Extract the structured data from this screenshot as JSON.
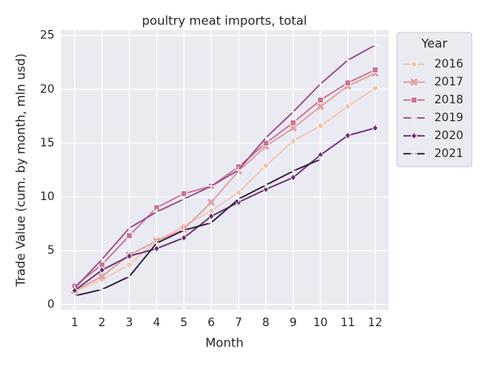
{
  "chart_data": {
    "type": "line",
    "title": "poultry meat imports, total",
    "x_label": "Month",
    "y_label": "Trade Value (cum. by month, mln usd)",
    "legend_title": "Year",
    "legend_position": "outside upper right",
    "grid": true,
    "x": [
      1,
      2,
      3,
      4,
      5,
      6,
      7,
      8,
      9,
      10,
      11,
      12
    ],
    "xlim": [
      0.5,
      12.5
    ],
    "xticks": [
      1,
      2,
      3,
      4,
      5,
      6,
      7,
      8,
      9,
      10,
      11,
      12
    ],
    "ylim": [
      -0.5,
      25.5
    ],
    "yticks": [
      0,
      5,
      10,
      15,
      20,
      25
    ],
    "series": [
      {
        "name": "2016",
        "color": "#efc8b5",
        "marker": "circle",
        "values": [
          1.2,
          2.3,
          3.7,
          5.9,
          7.3,
          8.7,
          10.4,
          12.9,
          15.2,
          16.6,
          18.4,
          20.1
        ]
      },
      {
        "name": "2017",
        "color": "#e2a0a0",
        "marker": "x",
        "values": [
          1.3,
          2.6,
          4.6,
          5.9,
          7.0,
          9.5,
          12.4,
          14.7,
          16.4,
          18.4,
          20.3,
          21.5
        ]
      },
      {
        "name": "2018",
        "color": "#c77595",
        "marker": "square",
        "values": [
          1.7,
          3.7,
          6.4,
          9.0,
          10.3,
          11.0,
          12.8,
          15.0,
          16.9,
          19.0,
          20.6,
          21.8
        ]
      },
      {
        "name": "2019",
        "color": "#9a4e88",
        "marker": "plus",
        "values": [
          1.5,
          4.2,
          7.1,
          8.6,
          9.8,
          11.0,
          12.5,
          15.5,
          17.9,
          20.5,
          22.7,
          24.1
        ]
      },
      {
        "name": "2020",
        "color": "#693172",
        "marker": "diamond",
        "values": [
          1.3,
          3.2,
          4.5,
          5.2,
          6.2,
          8.2,
          9.5,
          10.7,
          11.8,
          13.9,
          15.7,
          16.4
        ]
      },
      {
        "name": "2021",
        "color": "#2d1e3e",
        "marker": "plus",
        "values": [
          0.8,
          1.4,
          2.6,
          5.7,
          6.9,
          7.6,
          9.8,
          11.1,
          12.4,
          13.5,
          null,
          null
        ]
      }
    ]
  }
}
